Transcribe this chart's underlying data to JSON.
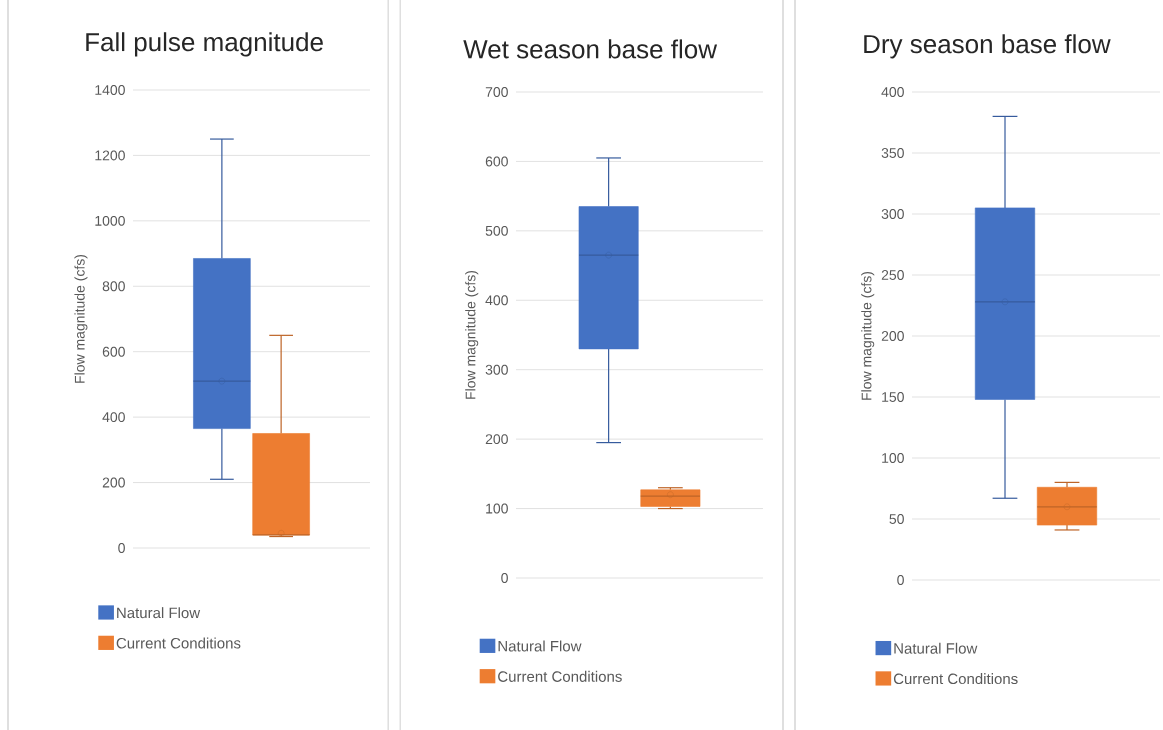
{
  "chart_data": [
    {
      "type": "box",
      "title": "Fall pulse magnitude",
      "ylabel": "Flow magnitude (cfs)",
      "categories": [
        null
      ],
      "ylim": [
        0,
        1400
      ],
      "yticks": [
        0,
        200,
        400,
        600,
        800,
        1000,
        1200,
        1400
      ],
      "grid": "y",
      "legend": "bottom",
      "series": [
        {
          "name": "Natural Flow",
          "color": "#4472c4",
          "boxes": [
            {
              "low": 210,
              "q1": 365,
              "median": 510,
              "q3": 885,
              "high": 1250,
              "mean": 510
            }
          ]
        },
        {
          "name": "Current Conditions",
          "color": "#ed7d31",
          "boxes": [
            {
              "low": 35,
              "q1": 40,
              "median": 40,
              "q3": 350,
              "high": 650,
              "mean": 45
            }
          ]
        }
      ]
    },
    {
      "type": "box",
      "title": "Wet season base flow",
      "ylabel": "Flow magnitude (cfs)",
      "categories": [
        null
      ],
      "ylim": [
        0,
        700
      ],
      "yticks": [
        0,
        100,
        200,
        300,
        400,
        500,
        600,
        700
      ],
      "grid": "y",
      "legend": "bottom",
      "series": [
        {
          "name": "Natural Flow",
          "color": "#4472c4",
          "boxes": [
            {
              "low": 195,
              "q1": 330,
              "median": 465,
              "q3": 535,
              "high": 605,
              "mean": 465
            }
          ]
        },
        {
          "name": "Current Conditions",
          "color": "#ed7d31",
          "boxes": [
            {
              "low": 100,
              "q1": 103,
              "median": 118,
              "q3": 127,
              "high": 130,
              "mean": 120
            }
          ]
        }
      ]
    },
    {
      "type": "box",
      "title": "Dry season base flow",
      "ylabel": "Flow magnitude (cfs)",
      "categories": [
        null
      ],
      "ylim": [
        0,
        400
      ],
      "yticks": [
        0,
        50,
        100,
        150,
        200,
        250,
        300,
        350,
        400
      ],
      "grid": "y",
      "legend": "bottom",
      "series": [
        {
          "name": "Natural Flow",
          "color": "#4472c4",
          "boxes": [
            {
              "low": 67,
              "q1": 148,
              "median": 228,
              "q3": 305,
              "high": 380,
              "mean": 228
            }
          ]
        },
        {
          "name": "Current Conditions",
          "color": "#ed7d31",
          "boxes": [
            {
              "low": 41,
              "q1": 45,
              "median": 60,
              "q3": 76,
              "high": 80,
              "mean": 60
            }
          ]
        }
      ]
    }
  ]
}
